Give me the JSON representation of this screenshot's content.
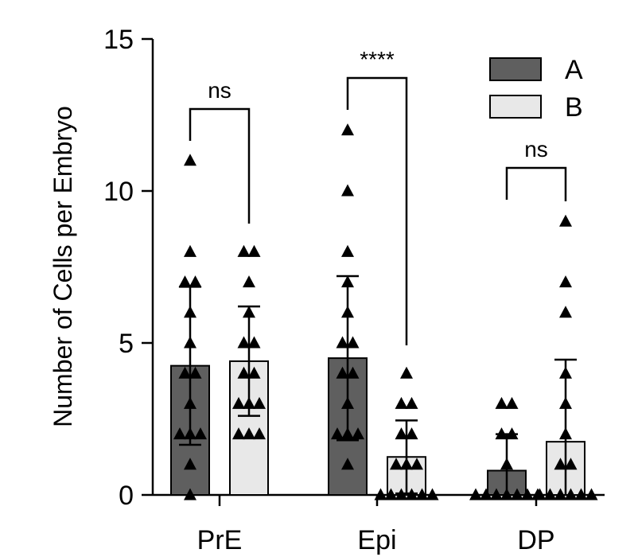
{
  "chart_data": {
    "type": "bar",
    "title": "",
    "ylabel": "Number of Cells per Embryo",
    "xlabel": "",
    "ylim": [
      0,
      15
    ],
    "yticks": [
      0,
      5,
      10,
      15
    ],
    "categories": [
      "PrE",
      "Epi",
      "DP"
    ],
    "legend_position": "top-right",
    "series": [
      {
        "name": "A",
        "color": "#5f5f5f",
        "values": [
          4.25,
          4.5,
          0.8
        ],
        "error": [
          2.6,
          2.7,
          1.2
        ],
        "points": [
          [
            11,
            8,
            7,
            7,
            6,
            5,
            4,
            4,
            3,
            2,
            2,
            2,
            1,
            0
          ],
          [
            12,
            10,
            8,
            7,
            6,
            5,
            5,
            4,
            4,
            3,
            2,
            2,
            2,
            1
          ],
          [
            3,
            3,
            2,
            2,
            1,
            0,
            0,
            0,
            0,
            0,
            0,
            0
          ]
        ]
      },
      {
        "name": "B",
        "color": "#e8e8e8",
        "values": [
          4.4,
          1.25,
          1.75
        ],
        "error": [
          1.8,
          1.2,
          2.7
        ],
        "points": [
          [
            8,
            8,
            7,
            6,
            5,
            5,
            4,
            4,
            3,
            3,
            3,
            2,
            2,
            2
          ],
          [
            4,
            3,
            3,
            2,
            2,
            1,
            1,
            1,
            0,
            0,
            0,
            0,
            0,
            0
          ],
          [
            9,
            7,
            6,
            4,
            3,
            2,
            1,
            1,
            0,
            0,
            0,
            0,
            0,
            0
          ]
        ]
      }
    ],
    "significance": [
      {
        "category": "PrE",
        "label": "ns"
      },
      {
        "category": "Epi",
        "label": "****"
      },
      {
        "category": "DP",
        "label": "ns"
      }
    ],
    "legend": [
      {
        "label": "A",
        "color": "#5f5f5f"
      },
      {
        "label": "B",
        "color": "#e8e8e8"
      }
    ]
  }
}
